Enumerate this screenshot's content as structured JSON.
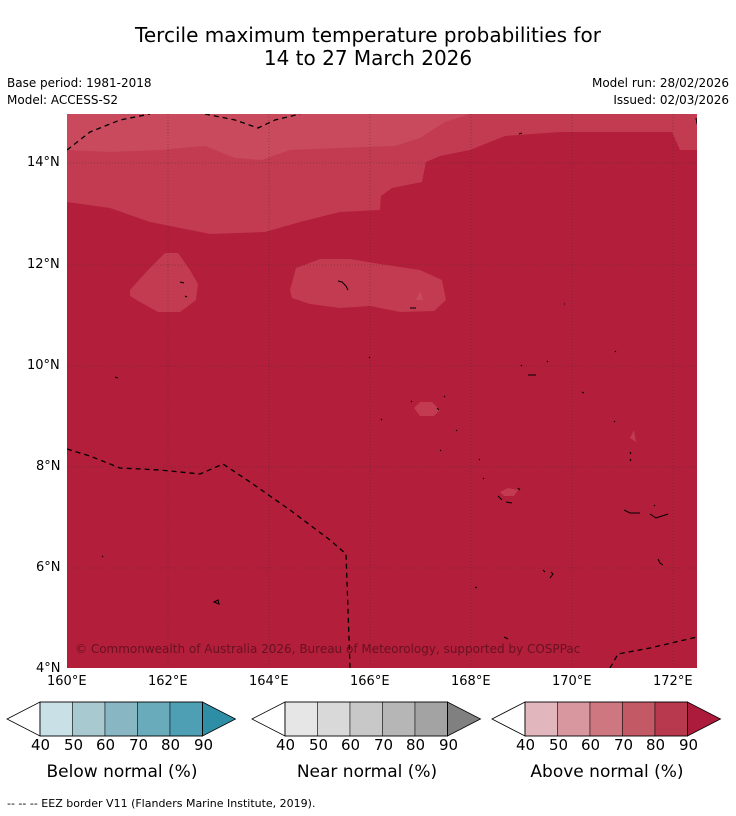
{
  "title": {
    "line1": "Tercile maximum temperature probabilities for",
    "line2": "14 to 27 March 2026"
  },
  "meta": {
    "base_period": "Base period: 1981-2018",
    "model": "Model: ACCESS-S2",
    "model_run": "Model run: 28/02/2026",
    "issued": "Issued: 02/03/2026"
  },
  "map": {
    "lat_labels": [
      "14°N",
      "12°N",
      "10°N",
      "8°N",
      "6°N",
      "4°N"
    ],
    "lon_labels": [
      "160°E",
      "162°E",
      "164°E",
      "166°E",
      "168°E",
      "170°E",
      "172°E"
    ],
    "lat_range": [
      4,
      15
    ],
    "lon_range": [
      160,
      172.5
    ],
    "copyright": "© Commonwealth of Australia 2026, Bureau of Meteorology, supported by COSPPac",
    "colors": {
      "above_80_90": "#b31e3a",
      "above_70_80": "#c23b50",
      "above_60_70": "#d06b78",
      "ocean_land_outline": "#000000"
    }
  },
  "colorbars": [
    {
      "title": "Below normal (%)",
      "ticks": [
        "40",
        "50",
        "60",
        "70",
        "80",
        "90"
      ],
      "colors": [
        "#c9e0e6",
        "#a8c9d0",
        "#88b7c3",
        "#6aabbb",
        "#4e9fb3",
        "#3490a6"
      ],
      "over_color": "#2e8ea6"
    },
    {
      "title": "Near normal (%)",
      "ticks": [
        "40",
        "50",
        "60",
        "70",
        "80",
        "90"
      ],
      "colors": [
        "#e6e6e6",
        "#d9d9d9",
        "#c8c8c8",
        "#b6b6b6",
        "#a3a3a3",
        "#8a8a8a"
      ],
      "over_color": "#808080"
    },
    {
      "title": "Above normal (%)",
      "ticks": [
        "40",
        "50",
        "60",
        "70",
        "80",
        "90"
      ],
      "colors": [
        "#e2b6bd",
        "#d8969f",
        "#cf7781",
        "#c45966",
        "#b8394e",
        "#b11a3c"
      ],
      "over_color": "#ac1a3c"
    }
  ],
  "footer": "--  --  -- EEZ border V11 (Flanders Marine Institute, 2019)."
}
